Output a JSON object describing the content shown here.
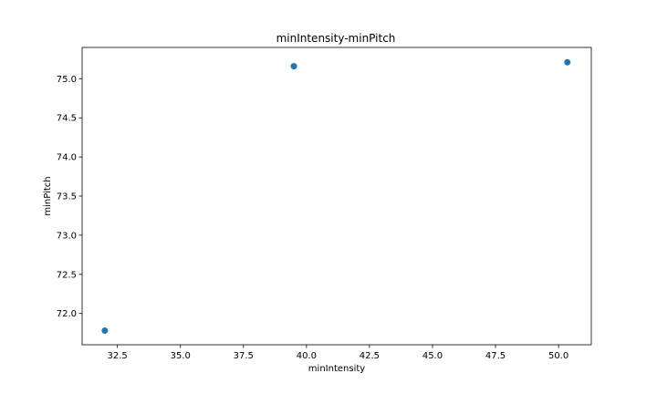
{
  "chart_data": {
    "type": "scatter",
    "title": "minIntensity-minPitch",
    "xlabel": "minIntensity",
    "ylabel": "minPitch",
    "xlim": [
      31.1,
      51.3
    ],
    "ylim": [
      71.6,
      75.4
    ],
    "xticks": [
      "32.5",
      "35.0",
      "37.5",
      "40.0",
      "42.5",
      "45.0",
      "47.5",
      "50.0"
    ],
    "yticks": [
      "72.0",
      "72.5",
      "73.0",
      "73.5",
      "74.0",
      "74.5",
      "75.0"
    ],
    "grid": false,
    "marker_color": "#1f77b4",
    "points": [
      {
        "x": 32.0,
        "y": 71.78
      },
      {
        "x": 39.5,
        "y": 75.16
      },
      {
        "x": 50.35,
        "y": 75.21
      }
    ]
  }
}
